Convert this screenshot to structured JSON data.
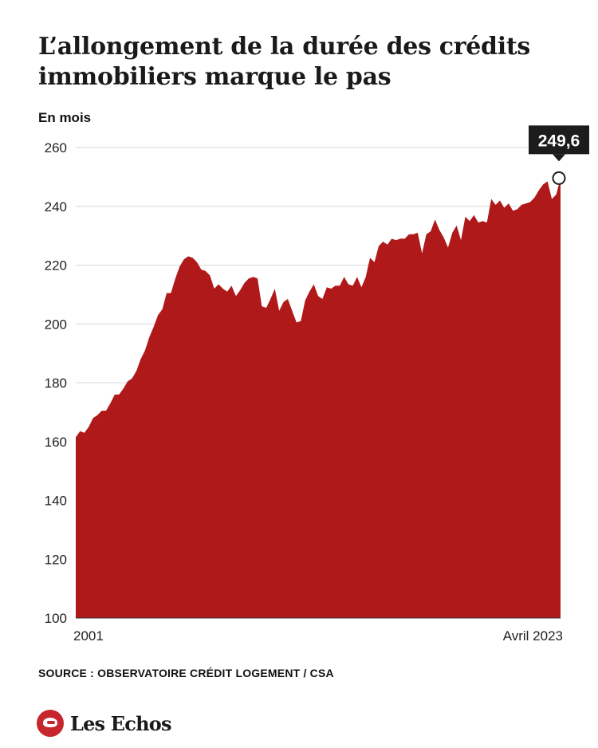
{
  "header": {
    "title": "L’allongement de la durée des crédits immobiliers marque le pas",
    "unit": "En mois"
  },
  "footer": {
    "source": "SOURCE : OBSERVATOIRE CRÉDIT LOGEMENT / CSA",
    "logo": "Les Echos"
  },
  "colors": {
    "area": "#b0191a",
    "grid": "#d9d9d9",
    "callout_bg": "#1c1c1c",
    "callout_text": "#ffffff"
  },
  "chart_data": {
    "type": "area",
    "x_start_label": "2001",
    "x_end_label": "Avril 2023",
    "ylim": [
      100,
      260
    ],
    "yticks": [
      100,
      120,
      140,
      160,
      180,
      200,
      220,
      240,
      260
    ],
    "grid": true,
    "annotation": {
      "label": "249,6",
      "value": 249.6
    },
    "values": [
      161.5,
      163.5,
      163,
      165,
      168,
      169,
      170.5,
      170.5,
      173,
      176,
      176,
      178,
      180.5,
      181.5,
      184,
      188,
      191,
      195.5,
      199,
      203,
      205,
      210.5,
      210.5,
      215.5,
      219.5,
      222,
      223,
      222.5,
      221,
      218.5,
      218,
      216.5,
      212,
      213.5,
      212,
      211,
      213,
      209.5,
      211.5,
      214,
      215.5,
      216,
      215.5,
      206,
      205.5,
      208.5,
      212,
      204.5,
      207.5,
      208.5,
      204.5,
      200.5,
      201,
      208,
      211,
      213.5,
      209.5,
      208.5,
      212.5,
      212,
      213,
      213,
      216,
      213.5,
      213,
      216,
      212.5,
      216,
      222.5,
      221,
      226.5,
      228,
      227,
      229,
      228.5,
      229,
      229,
      230.5,
      230.5,
      231,
      224,
      230.5,
      231.5,
      235.5,
      232,
      229.5,
      226,
      231,
      233.5,
      228.5,
      236.5,
      235,
      237,
      234.5,
      235,
      234.5,
      242.5,
      240.5,
      242,
      239.5,
      241,
      238.5,
      239,
      240.5,
      241,
      241.5,
      243,
      245.5,
      247.5,
      248.5,
      242.5,
      244,
      249.6
    ]
  }
}
